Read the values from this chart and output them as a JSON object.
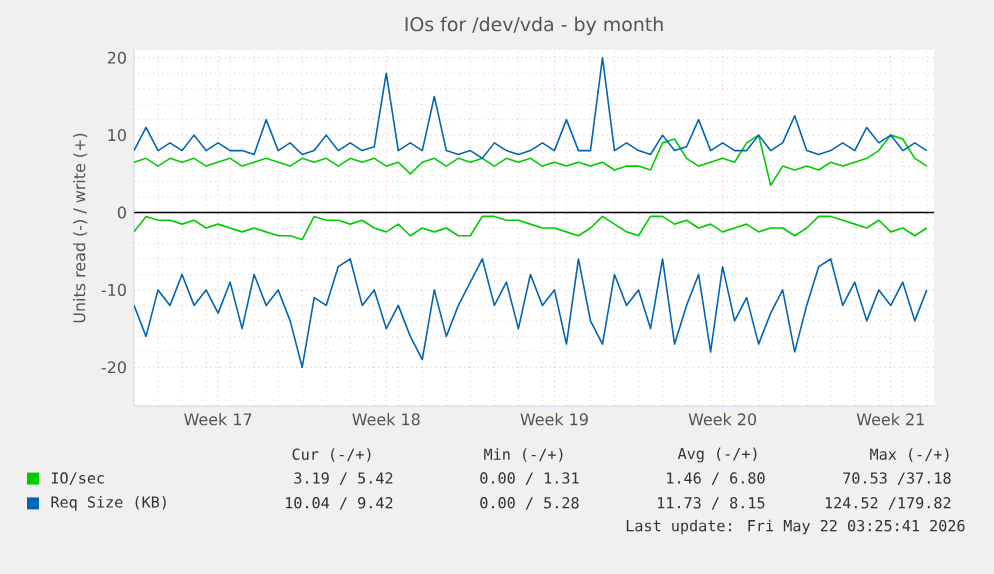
{
  "chart_data": {
    "type": "line",
    "title": "IOs for /dev/vda - by month",
    "ylabel": "Units read (-) / write (+)",
    "categories": [
      null,
      null,
      null,
      null,
      null,
      null,
      null,
      "Week 17",
      null,
      null,
      null,
      null,
      null,
      null,
      null,
      null,
      null,
      null,
      null,
      null,
      null,
      "Week 18",
      null,
      null,
      null,
      null,
      null,
      null,
      null,
      null,
      null,
      null,
      null,
      null,
      null,
      "Week 19",
      null,
      null,
      null,
      null,
      null,
      null,
      null,
      null,
      null,
      null,
      null,
      null,
      null,
      "Week 20",
      null,
      null,
      null,
      null,
      null,
      null,
      null,
      null,
      null,
      null,
      null,
      null,
      null,
      "Week 21",
      null,
      null,
      null
    ],
    "ylim": [
      -25,
      21
    ],
    "yticks": [
      -20,
      -10,
      0,
      10,
      20
    ],
    "grid": true,
    "legend": "bottom",
    "line_style": "solid",
    "marker": "none",
    "ref_lines": [
      {
        "axis": "y",
        "value": 0,
        "color": "#000000"
      }
    ],
    "series": [
      {
        "name": "IO/sec",
        "color": "#00cc00",
        "values": [
          6.5,
          7,
          6,
          7,
          6.5,
          7,
          6,
          6.5,
          7,
          6,
          6.5,
          7,
          6.5,
          6,
          7,
          6.5,
          7,
          6,
          7,
          6.5,
          7,
          6,
          6.5,
          5,
          6.5,
          7,
          6,
          7,
          6.5,
          7,
          6,
          7,
          6.5,
          7,
          6,
          6.5,
          6,
          6.5,
          6,
          6.5,
          5.5,
          6,
          6,
          5.5,
          9,
          9.5,
          7,
          6,
          6.5,
          7,
          6.5,
          9,
          10,
          3.5,
          6,
          5.5,
          6,
          5.5,
          6.5,
          6,
          6.5,
          7,
          8,
          10,
          9.5,
          7,
          6
        ]
      },
      {
        "name": "Req Size (KB)",
        "color": "#0066b3",
        "values": [
          8,
          11,
          8,
          9,
          8,
          10,
          8,
          9,
          8,
          8,
          7.5,
          12,
          8,
          9,
          7.5,
          8,
          10,
          8,
          9,
          8,
          8.5,
          18,
          8,
          9,
          8,
          15,
          8,
          7.5,
          8,
          7,
          9,
          8,
          7.5,
          8,
          9,
          8,
          12,
          8,
          8,
          20,
          8,
          9,
          8,
          7.5,
          10,
          8,
          8.5,
          12,
          8,
          9,
          8,
          8,
          10,
          8,
          9,
          12.5,
          8,
          7.5,
          8,
          9,
          8,
          11,
          9,
          10,
          8,
          9,
          8
        ]
      },
      {
        "color": "#00cc00",
        "values": [
          -2.5,
          -0.5,
          -1,
          -1,
          -1.5,
          -1,
          -2,
          -1.5,
          -2,
          -2.5,
          -2,
          -2.5,
          -3,
          -3,
          -3.5,
          -0.5,
          -1,
          -1,
          -1.5,
          -1,
          -2,
          -2.5,
          -1.5,
          -3,
          -2,
          -2.5,
          -2,
          -3,
          -3,
          -0.5,
          -0.5,
          -1,
          -1,
          -1.5,
          -2,
          -2,
          -2.5,
          -3,
          -2,
          -0.5,
          -1.5,
          -2.5,
          -3,
          -0.5,
          -0.5,
          -1.5,
          -1,
          -2,
          -1.5,
          -2.5,
          -2,
          -1.5,
          -2.5,
          -2,
          -2,
          -3,
          -2,
          -0.5,
          -0.5,
          -1,
          -1.5,
          -2,
          -1,
          -2.5,
          -2,
          -3,
          -2
        ]
      },
      {
        "color": "#0066b3",
        "values": [
          -12,
          -16,
          -10,
          -12,
          -8,
          -12,
          -10,
          -13,
          -9,
          -15,
          -8,
          -12,
          -10,
          -14,
          -20,
          -11,
          -12,
          -7,
          -6,
          -12,
          -10,
          -15,
          -12,
          -16,
          -19,
          -10,
          -16,
          -12,
          -9,
          -6,
          -12,
          -9,
          -15,
          -8,
          -12,
          -10,
          -17,
          -6,
          -14,
          -17,
          -8,
          -12,
          -10,
          -15,
          -6,
          -17,
          -12,
          -8,
          -18,
          -7,
          -14,
          -11,
          -17,
          -13,
          -10,
          -18,
          -12,
          -7,
          -6,
          -12,
          -9,
          -14,
          -10,
          -12,
          -9,
          -14,
          -10
        ]
      }
    ],
    "annotations": [
      "Cur (-/+)",
      "Min (-/+)",
      "Avg (-/+)",
      "Max (-/+)",
      "3.19 / 5.42",
      "0.00 / 1.31",
      "1.46 / 6.80",
      "70.53 /37.18",
      "10.04 / 9.42",
      "0.00 / 5.28",
      "11.73 / 8.15",
      "124.52 /179.82",
      "Last update: Fri May 22 03:25:41 2026"
    ]
  }
}
